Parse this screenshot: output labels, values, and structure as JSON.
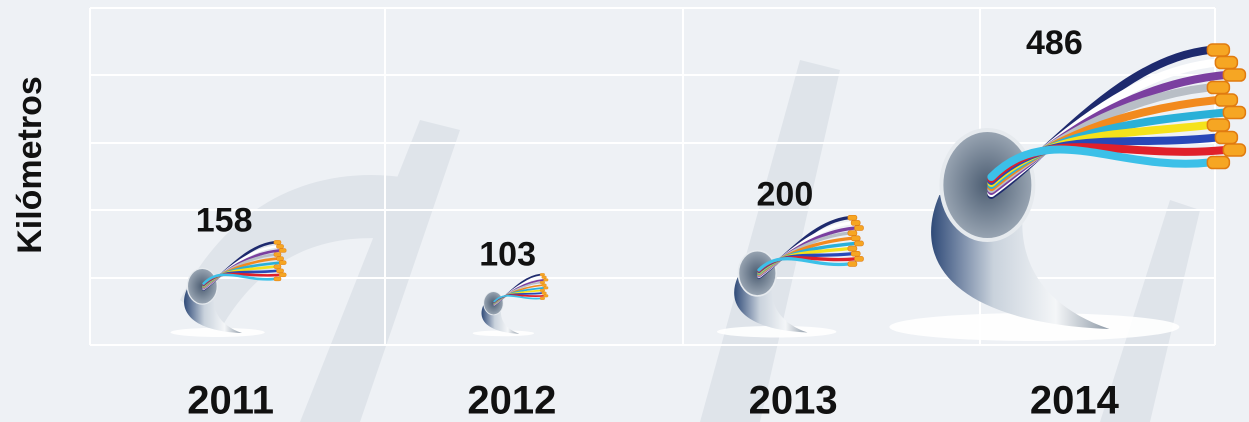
{
  "chart_data": {
    "type": "pictorial",
    "y_label": "Kilómetros",
    "categories": [
      "2011",
      "2012",
      "2013",
      "2014"
    ],
    "values": [
      158,
      103,
      200,
      486
    ]
  }
}
